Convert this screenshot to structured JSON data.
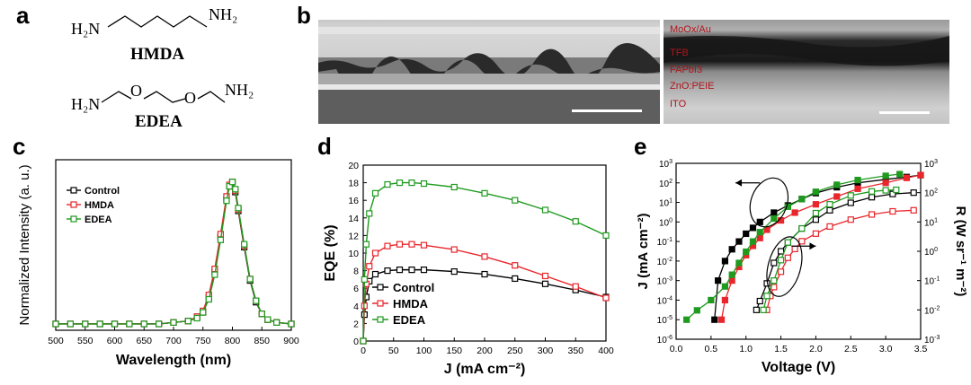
{
  "panels": {
    "a": "a",
    "b": "b",
    "c": "c",
    "d": "d",
    "e": "e"
  },
  "molecules": [
    {
      "name": "HMDA",
      "left_group": "H₂N",
      "right_group": "NH₂"
    },
    {
      "name": "EDEA",
      "left_group": "H₂N",
      "right_group": "NH₂",
      "atom1": "O",
      "atom2": "O"
    }
  ],
  "tem_labels": [
    "MoOx/Au",
    "TFB",
    "FAPbI3",
    "ZnO:PEIE",
    "ITO"
  ],
  "colors": {
    "Control": "#000000",
    "HMDA": "#e8262c",
    "EDEA": "#1f9a1f"
  },
  "chart_data": [
    {
      "id": "c",
      "type": "line",
      "xlabel": "Wavelength (nm)",
      "ylabel": "Normalized Intensity (a. u.)",
      "xlim": [
        500,
        900
      ],
      "xticks": [
        500,
        550,
        600,
        650,
        700,
        750,
        800,
        850,
        900
      ],
      "legend": "top-left",
      "series": [
        {
          "name": "Control",
          "x": [
            500,
            525,
            550,
            575,
            600,
            625,
            650,
            675,
            700,
            725,
            740,
            750,
            760,
            770,
            780,
            790,
            795,
            800,
            805,
            810,
            820,
            830,
            840,
            850,
            860,
            875,
            900
          ],
          "y": [
            0.02,
            0.02,
            0.02,
            0.02,
            0.02,
            0.02,
            0.02,
            0.02,
            0.03,
            0.04,
            0.07,
            0.1,
            0.2,
            0.38,
            0.62,
            0.88,
            0.97,
            1.0,
            0.93,
            0.8,
            0.55,
            0.32,
            0.17,
            0.09,
            0.05,
            0.03,
            0.02
          ]
        },
        {
          "name": "HMDA",
          "x": [
            500,
            525,
            550,
            575,
            600,
            625,
            650,
            675,
            700,
            725,
            740,
            750,
            760,
            770,
            780,
            790,
            795,
            800,
            805,
            810,
            820,
            830,
            840,
            850,
            860,
            875,
            900
          ],
          "y": [
            0.02,
            0.02,
            0.02,
            0.02,
            0.02,
            0.02,
            0.02,
            0.02,
            0.03,
            0.04,
            0.07,
            0.11,
            0.22,
            0.4,
            0.64,
            0.9,
            0.98,
            1.0,
            0.94,
            0.81,
            0.56,
            0.33,
            0.18,
            0.09,
            0.05,
            0.03,
            0.02
          ]
        },
        {
          "name": "EDEA",
          "x": [
            500,
            525,
            550,
            575,
            600,
            625,
            650,
            675,
            700,
            725,
            740,
            750,
            760,
            770,
            780,
            790,
            795,
            800,
            805,
            810,
            820,
            830,
            840,
            850,
            860,
            875,
            900
          ],
          "y": [
            0.02,
            0.02,
            0.02,
            0.02,
            0.02,
            0.02,
            0.02,
            0.02,
            0.03,
            0.04,
            0.06,
            0.1,
            0.19,
            0.36,
            0.6,
            0.87,
            0.97,
            1.0,
            0.95,
            0.82,
            0.57,
            0.33,
            0.18,
            0.09,
            0.05,
            0.03,
            0.02
          ]
        }
      ]
    },
    {
      "id": "d",
      "type": "line",
      "xlabel": "J (mA cm⁻²)",
      "ylabel": "EQE (%)",
      "xlim": [
        0,
        400
      ],
      "ylim": [
        0,
        20
      ],
      "xticks": [
        0,
        50,
        100,
        150,
        200,
        250,
        300,
        350,
        400
      ],
      "yticks": [
        0,
        2,
        4,
        6,
        8,
        10,
        12,
        14,
        16,
        18,
        20
      ],
      "legend": "bottom-left",
      "series": [
        {
          "name": "Control",
          "x": [
            0,
            2,
            5,
            10,
            20,
            40,
            60,
            80,
            100,
            150,
            200,
            250,
            300,
            350,
            400
          ],
          "y": [
            0,
            3,
            5,
            6.8,
            7.6,
            8.0,
            8.1,
            8.1,
            8.1,
            7.9,
            7.6,
            7.1,
            6.5,
            5.8,
            5.0
          ]
        },
        {
          "name": "HMDA",
          "x": [
            0,
            2,
            5,
            10,
            20,
            40,
            60,
            80,
            100,
            150,
            200,
            250,
            300,
            350,
            400
          ],
          "y": [
            0,
            4,
            6.5,
            8.5,
            10.0,
            10.8,
            11.0,
            11.0,
            10.9,
            10.4,
            9.6,
            8.6,
            7.4,
            6.2,
            4.9
          ]
        },
        {
          "name": "EDEA",
          "x": [
            0,
            2,
            5,
            10,
            20,
            40,
            60,
            80,
            100,
            150,
            200,
            250,
            300,
            350,
            400
          ],
          "y": [
            0,
            7,
            11,
            14.5,
            16.8,
            17.8,
            18.0,
            18.0,
            17.9,
            17.5,
            16.8,
            16.0,
            14.9,
            13.6,
            12.0
          ]
        }
      ]
    },
    {
      "id": "e",
      "type": "scatter",
      "xlabel": "Voltage (V)",
      "ylabel": "J (mA cm⁻²)",
      "y2label": "R (W sr⁻¹ m⁻²)",
      "xlim": [
        0,
        3.5
      ],
      "xticks": [
        0.0,
        0.5,
        1.0,
        1.5,
        2.0,
        2.5,
        3.0,
        3.5
      ],
      "ylog": true,
      "ylim_exp": [
        -6,
        3
      ],
      "y2log": true,
      "y2lim_exp": [
        -3,
        3
      ],
      "series": [
        {
          "name": "Control J",
          "axis": "left",
          "x": [
            0.55,
            0.6,
            0.7,
            0.8,
            0.9,
            1.0,
            1.1,
            1.2,
            1.4,
            1.6,
            1.8,
            2.0,
            2.3,
            2.6,
            3.0,
            3.3,
            3.5
          ],
          "y": [
            1e-05,
            0.001,
            0.01,
            0.04,
            0.1,
            0.25,
            0.5,
            1,
            3,
            7,
            15,
            30,
            60,
            100,
            150,
            200,
            250
          ]
        },
        {
          "name": "HMDA J",
          "axis": "left",
          "x": [
            0.65,
            0.7,
            0.8,
            0.9,
            1.0,
            1.1,
            1.2,
            1.3,
            1.5,
            1.7,
            2.0,
            2.3,
            2.6,
            3.0,
            3.3,
            3.5
          ],
          "y": [
            1e-05,
            0.0001,
            0.001,
            0.005,
            0.02,
            0.06,
            0.15,
            0.4,
            1.2,
            3,
            8,
            20,
            50,
            100,
            180,
            250
          ]
        },
        {
          "name": "EDEA J",
          "axis": "left",
          "x": [
            0.15,
            0.3,
            0.5,
            0.7,
            0.8,
            0.9,
            1.0,
            1.1,
            1.2,
            1.4,
            1.6,
            1.8,
            2.0,
            2.3,
            2.6,
            3.0,
            3.2
          ],
          "y": [
            1e-05,
            3e-05,
            0.0001,
            0.0005,
            0.002,
            0.008,
            0.03,
            0.1,
            0.3,
            1.5,
            6,
            15,
            35,
            80,
            140,
            230,
            280
          ]
        },
        {
          "name": "Control R",
          "axis": "right",
          "x": [
            1.15,
            1.2,
            1.3,
            1.4,
            1.5,
            1.6,
            1.8,
            2.0,
            2.2,
            2.5,
            2.8,
            3.1,
            3.4
          ],
          "y": [
            0.01,
            0.02,
            0.08,
            0.4,
            1,
            2,
            6,
            12,
            25,
            45,
            70,
            90,
            100
          ]
        },
        {
          "name": "HMDA R",
          "axis": "right",
          "x": [
            1.3,
            1.35,
            1.4,
            1.5,
            1.6,
            1.7,
            1.8,
            2.0,
            2.2,
            2.5,
            2.8,
            3.1,
            3.4
          ],
          "y": [
            0.01,
            0.03,
            0.06,
            0.2,
            0.6,
            1.2,
            2.2,
            4,
            7,
            12,
            18,
            23,
            25
          ]
        },
        {
          "name": "EDEA R",
          "axis": "right",
          "x": [
            1.25,
            1.3,
            1.4,
            1.5,
            1.6,
            1.8,
            2.0,
            2.2,
            2.5,
            2.8,
            3.0,
            3.15
          ],
          "y": [
            0.01,
            0.03,
            0.1,
            0.5,
            2,
            6,
            20,
            40,
            80,
            110,
            120,
            125
          ]
        }
      ]
    }
  ]
}
